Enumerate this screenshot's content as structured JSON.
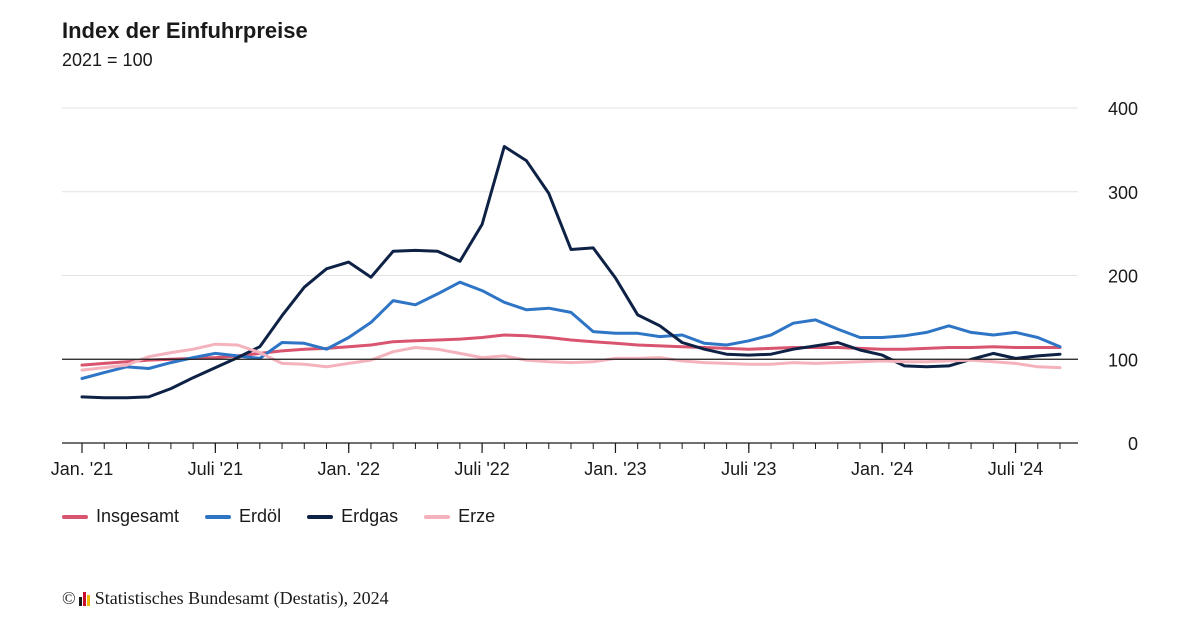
{
  "title": "Index der Einfuhrpreise",
  "subtitle": "2021 = 100",
  "source": {
    "copyright_symbol": "©",
    "text": "Statistisches Bundesamt (Destatis), 2024",
    "logo_colors": [
      "#1a1a1a",
      "#c8102e",
      "#f2b705"
    ]
  },
  "chart_data": {
    "type": "line",
    "title": "Index der Einfuhrpreise",
    "subtitle": "2021 = 100",
    "xlabel": "",
    "ylabel": "",
    "ylim": [
      0,
      400
    ],
    "y_ticks": [
      0,
      100,
      200,
      300,
      400
    ],
    "y_axis_position": "right",
    "reference_line": 100,
    "grid": true,
    "legend_position": "bottom-left",
    "x_ticks": [
      {
        "label": "Jan. '21",
        "month_index": 0
      },
      {
        "label": "Juli '21",
        "month_index": 6
      },
      {
        "label": "Jan. '22",
        "month_index": 12
      },
      {
        "label": "Juli '22",
        "month_index": 18
      },
      {
        "label": "Jan. '23",
        "month_index": 24
      },
      {
        "label": "Juli '23",
        "month_index": 30
      },
      {
        "label": "Jan. '24",
        "month_index": 36
      },
      {
        "label": "Juli '24",
        "month_index": 42
      }
    ],
    "x": [
      "2021-01",
      "2021-02",
      "2021-03",
      "2021-04",
      "2021-05",
      "2021-06",
      "2021-07",
      "2021-08",
      "2021-09",
      "2021-10",
      "2021-11",
      "2021-12",
      "2022-01",
      "2022-02",
      "2022-03",
      "2022-04",
      "2022-05",
      "2022-06",
      "2022-07",
      "2022-08",
      "2022-09",
      "2022-10",
      "2022-11",
      "2022-12",
      "2023-01",
      "2023-02",
      "2023-03",
      "2023-04",
      "2023-05",
      "2023-06",
      "2023-07",
      "2023-08",
      "2023-09",
      "2023-10",
      "2023-11",
      "2023-12",
      "2024-01",
      "2024-02",
      "2024-03",
      "2024-04",
      "2024-05",
      "2024-06",
      "2024-07",
      "2024-08",
      "2024-09"
    ],
    "series": [
      {
        "name": "Insgesamt",
        "color": "#d9546e",
        "values": [
          93,
          95,
          97,
          99,
          100,
          101,
          102,
          104,
          107,
          110,
          112,
          113,
          115,
          117,
          121,
          122,
          123,
          124,
          126,
          129,
          128,
          126,
          123,
          121,
          119,
          117,
          116,
          115,
          114,
          113,
          112,
          113,
          114,
          114,
          114,
          113,
          112,
          112,
          113,
          114,
          114,
          115,
          114,
          114,
          114
        ]
      },
      {
        "name": "Erdöl",
        "color": "#2f75c6",
        "values": [
          77,
          84,
          91,
          89,
          96,
          102,
          107,
          104,
          101,
          120,
          119,
          112,
          126,
          144,
          170,
          165,
          178,
          192,
          182,
          168,
          159,
          161,
          156,
          133,
          131,
          131,
          127,
          129,
          119,
          117,
          122,
          129,
          143,
          147,
          136,
          126,
          126,
          128,
          132,
          140,
          132,
          129,
          132,
          126,
          115
        ]
      },
      {
        "name": "Erdgas",
        "color": "#0e2246",
        "values": [
          55,
          54,
          54,
          55,
          65,
          78,
          90,
          102,
          115,
          152,
          186,
          208,
          216,
          198,
          229,
          230,
          229,
          217,
          261,
          354,
          337,
          298,
          231,
          233,
          197,
          153,
          140,
          120,
          112,
          106,
          105,
          106,
          112,
          116,
          120,
          111,
          105,
          92,
          91,
          92,
          100,
          107,
          101,
          104,
          106
        ]
      },
      {
        "name": "Erze",
        "color": "#f4b2bc",
        "values": [
          87,
          90,
          93,
          103,
          108,
          112,
          118,
          117,
          108,
          95,
          94,
          91,
          95,
          99,
          109,
          114,
          112,
          107,
          102,
          104,
          99,
          97,
          96,
          97,
          101,
          101,
          102,
          98,
          96,
          95,
          94,
          94,
          96,
          95,
          96,
          97,
          98,
          97,
          97,
          98,
          99,
          97,
          95,
          91,
          90
        ]
      }
    ]
  }
}
